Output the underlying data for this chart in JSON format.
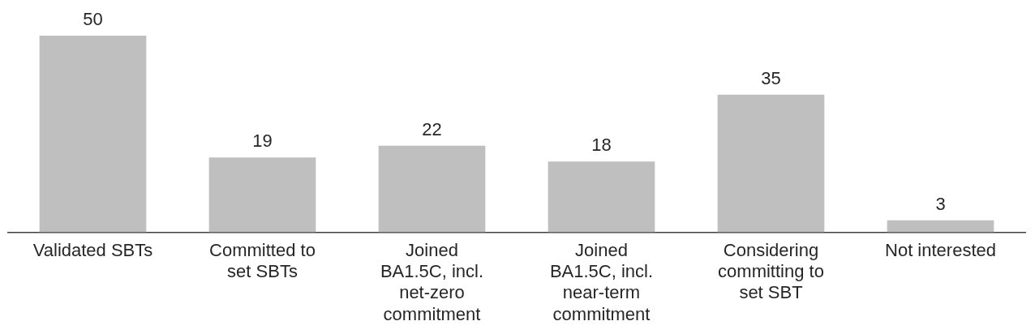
{
  "chart_data": {
    "type": "bar",
    "categories": [
      "Validated SBTs",
      "Committed to set SBTs",
      "Joined BA1.5C, incl. net-zero commitment",
      "Joined BA1.5C, incl. near-term commitment",
      "Considering committing to set SBT",
      "Not interested"
    ],
    "values": [
      50,
      19,
      22,
      18,
      35,
      3
    ],
    "color": "#bfbfbf",
    "data_labels": true,
    "grid": false,
    "legend": false
  }
}
